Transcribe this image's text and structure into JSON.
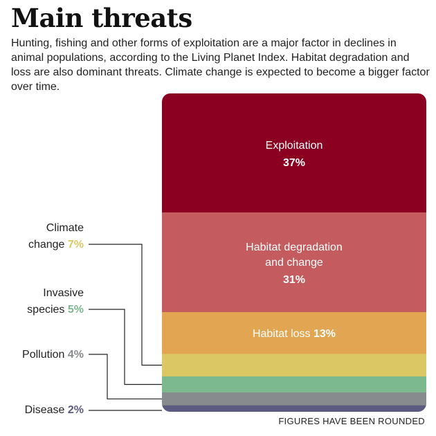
{
  "title": "Main threats",
  "subtitle": "Hunting, fishing and other forms of exploitation are a major factor in declines in animal populations, according to the Living Planet Index. Habitat degradation and loss are also dominant threats. Climate change is expected to become a bigger factor over time.",
  "footnote": "FIGURES HAVE BEEN ROUNDED",
  "chart_data": {
    "type": "bar",
    "stacked": true,
    "unit": "%",
    "segments": [
      {
        "label_lines": [
          "Exploitation"
        ],
        "value": 37,
        "value_text": "37%",
        "color": "#8b0020",
        "label_position": "inside"
      },
      {
        "label_lines": [
          "Habitat degradation",
          "and change"
        ],
        "value": 31,
        "value_text": "31%",
        "color": "#c45b5e",
        "label_position": "inside"
      },
      {
        "label_lines": [
          "Habitat loss"
        ],
        "value": 13,
        "value_text": "13%",
        "color": "#e2a653",
        "label_position": "inside"
      },
      {
        "label_lines": [
          "Climate",
          "change"
        ],
        "value": 7,
        "value_text": "7%",
        "color": "#dbc864",
        "label_position": "outside"
      },
      {
        "label_lines": [
          "Invasive",
          "species"
        ],
        "value": 5,
        "value_text": "5%",
        "color": "#7db98f",
        "label_position": "outside"
      },
      {
        "label_lines": [
          "Pollution"
        ],
        "value": 4,
        "value_text": "4%",
        "color": "#878b8e",
        "label_position": "outside"
      },
      {
        "label_lines": [
          "Disease"
        ],
        "value": 2,
        "value_text": "2%",
        "color": "#5b5b82",
        "label_position": "outside"
      }
    ]
  }
}
